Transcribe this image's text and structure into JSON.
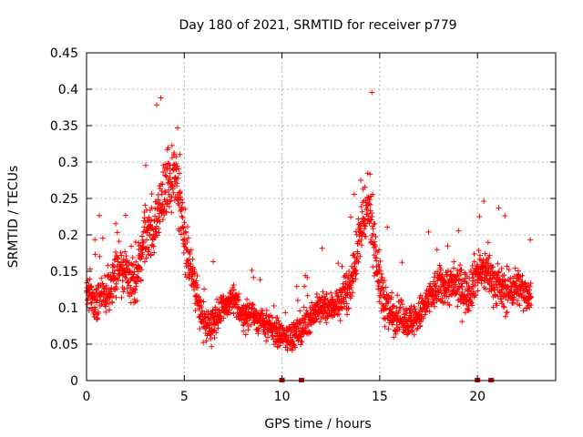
{
  "chart_data": {
    "type": "scatter",
    "title": "Day 180 of 2021, SRMTID for receiver p779",
    "xlabel": "GPS time / hours",
    "ylabel": "SRMTID / TECUs",
    "xlim": [
      0,
      24
    ],
    "ylim": [
      0,
      0.45
    ],
    "xticks": [
      0,
      5,
      10,
      15,
      20
    ],
    "yticks": [
      0,
      0.05,
      0.1,
      0.15,
      0.2,
      0.25,
      0.3,
      0.35,
      0.4,
      0.45
    ],
    "xtick_labels": [
      "0",
      "5",
      "10",
      "15",
      "20"
    ],
    "ytick_labels": [
      "0",
      "0.05",
      "0.1",
      "0.15",
      "0.2",
      "0.25",
      "0.3",
      "0.35",
      "0.4",
      "0.45"
    ],
    "grid": true,
    "marker": "+",
    "color": "#ff0000",
    "approx_profile": [
      [
        0,
        0.12
      ],
      [
        0.5,
        0.11
      ],
      [
        1,
        0.12
      ],
      [
        1.5,
        0.15
      ],
      [
        2,
        0.15
      ],
      [
        2.5,
        0.13
      ],
      [
        3,
        0.2
      ],
      [
        3.5,
        0.21
      ],
      [
        4,
        0.26
      ],
      [
        4.5,
        0.29
      ],
      [
        5,
        0.2
      ],
      [
        5.5,
        0.13
      ],
      [
        6,
        0.08
      ],
      [
        6.5,
        0.08
      ],
      [
        7,
        0.1
      ],
      [
        7.5,
        0.11
      ],
      [
        8,
        0.09
      ],
      [
        8.5,
        0.09
      ],
      [
        9,
        0.08
      ],
      [
        9.5,
        0.07
      ],
      [
        10,
        0.06
      ],
      [
        10.5,
        0.06
      ],
      [
        11,
        0.07
      ],
      [
        11.5,
        0.09
      ],
      [
        12,
        0.1
      ],
      [
        12.5,
        0.1
      ],
      [
        13,
        0.11
      ],
      [
        13.5,
        0.13
      ],
      [
        14,
        0.2
      ],
      [
        14.5,
        0.24
      ],
      [
        15,
        0.13
      ],
      [
        15.5,
        0.09
      ],
      [
        16,
        0.09
      ],
      [
        16.5,
        0.08
      ],
      [
        17,
        0.09
      ],
      [
        17.5,
        0.11
      ],
      [
        18,
        0.13
      ],
      [
        18.5,
        0.13
      ],
      [
        19,
        0.13
      ],
      [
        19.5,
        0.12
      ],
      [
        20,
        0.15
      ],
      [
        20.5,
        0.15
      ],
      [
        21,
        0.13
      ],
      [
        21.5,
        0.12
      ],
      [
        22,
        0.13
      ],
      [
        22.5,
        0.12
      ]
    ],
    "noise_spread": [
      [
        0,
        0.04
      ],
      [
        3,
        0.06
      ],
      [
        4.5,
        0.08
      ],
      [
        5.5,
        0.04
      ],
      [
        9,
        0.03
      ],
      [
        13,
        0.035
      ],
      [
        14.5,
        0.07
      ],
      [
        16,
        0.035
      ],
      [
        20,
        0.05
      ],
      [
        22.5,
        0.04
      ]
    ],
    "zero_markers_x": [
      10,
      11,
      20,
      20.7
    ]
  }
}
